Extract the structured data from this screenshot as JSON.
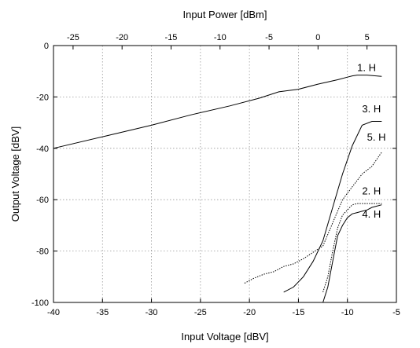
{
  "chart_data": {
    "type": "line",
    "xlabel": "Input Voltage [dBV]",
    "x2label": "Input Power [dBm]",
    "ylabel": "Output Voltage [dBV]",
    "xlim": [
      -40,
      -5
    ],
    "ylim": [
      -100,
      0
    ],
    "x2lim": [
      -27,
      8
    ],
    "grid": true,
    "xticks": [
      -40,
      -35,
      -30,
      -25,
      -20,
      -15,
      -10,
      -5
    ],
    "yticks": [
      -100,
      -80,
      -60,
      -40,
      -20,
      0
    ],
    "x2ticks": [
      -25,
      -20,
      -15,
      -10,
      -5,
      0,
      5
    ],
    "series": [
      {
        "name": "1. H",
        "style": "solid",
        "x": [
          -40,
          -35,
          -30,
          -26,
          -22,
          -19,
          -17,
          -15,
          -13,
          -11,
          -10,
          -9.5,
          -9,
          -8,
          -6.5
        ],
        "y": [
          -40,
          -35.5,
          -31,
          -27,
          -23.5,
          -20.5,
          -18,
          -17,
          -15,
          -13.3,
          -12.3,
          -11.8,
          -11.5,
          -11.5,
          -12
        ],
        "label_at": [
          -9,
          -10
        ]
      },
      {
        "name": "3. H",
        "style": "solid",
        "x": [
          -16.5,
          -15.5,
          -14.5,
          -13.5,
          -12.5,
          -11.5,
          -10.5,
          -9.5,
          -8.5,
          -7.5,
          -6.5
        ],
        "y": [
          -96,
          -94,
          -90,
          -84,
          -76,
          -63,
          -50,
          -39,
          -31,
          -29.5,
          -29.5
        ],
        "label_at": [
          -8.5,
          -26
        ]
      },
      {
        "name": "5. H",
        "style": "dotted",
        "x": [
          -20.5,
          -19.5,
          -18.5,
          -17.5,
          -16.5,
          -15.5,
          -14.5,
          -13.5,
          -12.5,
          -11.5,
          -10.5,
          -9.5,
          -8.5,
          -7.5,
          -6.5
        ],
        "y": [
          -92.5,
          -90.5,
          -89,
          -88,
          -86,
          -85,
          -83,
          -80.5,
          -78,
          -69,
          -60,
          -55,
          -50,
          -47,
          -41.5
        ],
        "label_at": [
          -8,
          -37
        ]
      },
      {
        "name": "2. H",
        "style": "dotted",
        "x": [
          -12.5,
          -12,
          -11.5,
          -11,
          -10.5,
          -10,
          -9.5,
          -9,
          -8.5,
          -8,
          -7.5,
          -7,
          -6.5
        ],
        "y": [
          -96,
          -90,
          -80,
          -71,
          -66,
          -64,
          -62,
          -61.5,
          -61.5,
          -61.5,
          -61.5,
          -61.5,
          -61.5
        ],
        "label_at": [
          -8.5,
          -58
        ]
      },
      {
        "name": "4. H",
        "style": "solid",
        "x": [
          -12.5,
          -12,
          -11.5,
          -11,
          -10.5,
          -10,
          -9.5,
          -9,
          -8.5,
          -8,
          -7.5,
          -7,
          -6.5
        ],
        "y": [
          -100,
          -94,
          -84,
          -74,
          -70,
          -67,
          -65.5,
          -65,
          -64.5,
          -64,
          -63,
          -62.5,
          -62
        ],
        "label_at": [
          -8.5,
          -67
        ]
      }
    ]
  }
}
